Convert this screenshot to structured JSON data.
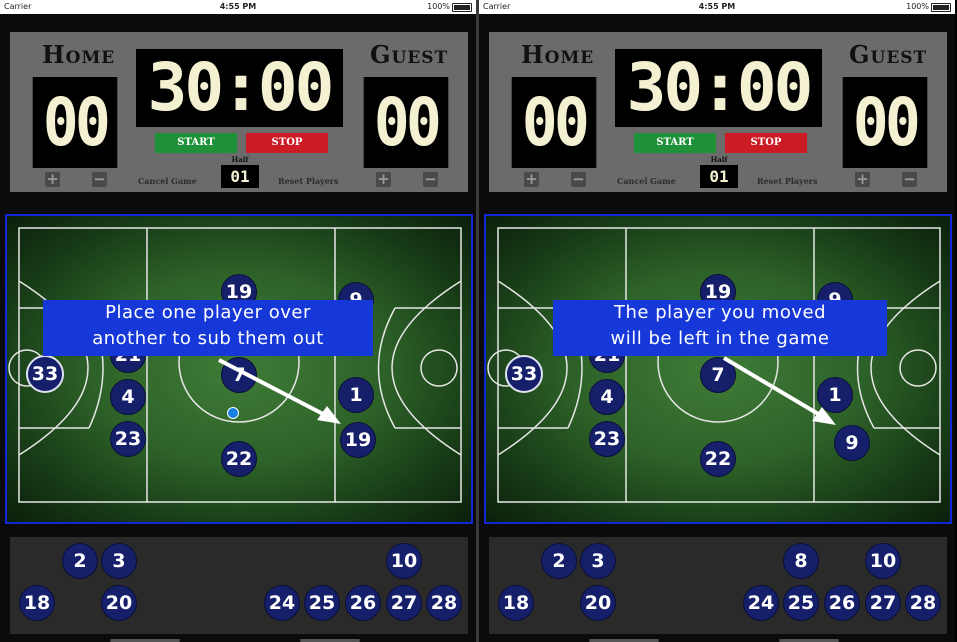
{
  "status_bar": {
    "carrier": "Carrier",
    "time": "4:55 PM",
    "battery": "100%"
  },
  "scoreboard": {
    "home_label": "Home",
    "guest_label": "Guest",
    "home_score": "00",
    "guest_score": "00",
    "clock": "30:00",
    "start_label": "START",
    "stop_label": "STOP",
    "half_label": "Half",
    "half_value": "01",
    "cancel_label": "Cancel Game",
    "reset_label": "Reset Players",
    "plus": "+",
    "minus": "−"
  },
  "left_panel": {
    "callout_line1": "Place one player over",
    "callout_line2": "another to sub them out",
    "field_players": [
      "19",
      "9",
      "21",
      "33",
      "7",
      "1",
      "4",
      "19",
      "23",
      "22"
    ],
    "bench_players": [
      "2",
      "3",
      "10",
      "18",
      "20",
      "24",
      "25",
      "26",
      "27",
      "28"
    ]
  },
  "right_panel": {
    "callout_line1": "The  player you moved",
    "callout_line2": "will be left in the game",
    "field_players": [
      "19",
      "9",
      "21",
      "33",
      "7",
      "1",
      "4",
      "9",
      "23",
      "22"
    ],
    "bench_players": [
      "2",
      "3",
      "8",
      "10",
      "18",
      "20",
      "24",
      "25",
      "26",
      "27",
      "28"
    ]
  },
  "colors": {
    "accent": "#1638d8",
    "player": "#16206a",
    "start": "#1e9139",
    "stop": "#cc1b24"
  }
}
